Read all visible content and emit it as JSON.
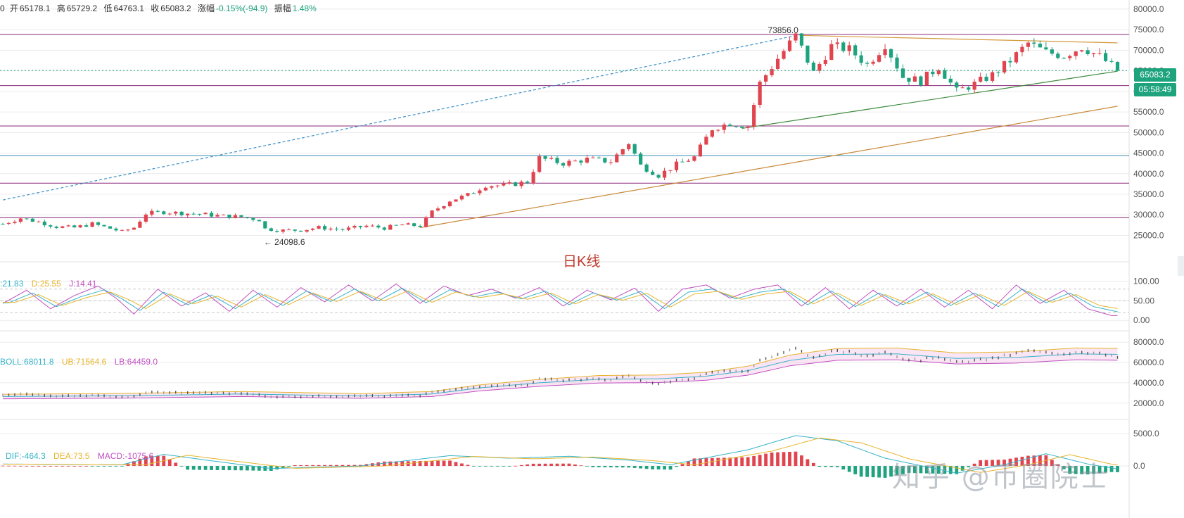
{
  "header": {
    "ohlc": [
      {
        "k": "开",
        "v": "65178.1"
      },
      {
        "k": "高",
        "v": "65729.2"
      },
      {
        "k": "低",
        "v": "64763.1"
      },
      {
        "k": "收",
        "v": "65083.2"
      },
      {
        "k": "涨幅",
        "v": "-0.15%(-94.9)"
      },
      {
        "k": "振幅",
        "v": "1.48%"
      }
    ],
    "lead": "0"
  },
  "colors": {
    "up": "#e0454f",
    "down": "#1da37e",
    "grid": "#ececec",
    "kdj_k": "#36b3c8",
    "kdj_d": "#e7b42c",
    "kdj_j": "#c050c0",
    "boll_mid": "#36b3c8",
    "boll_up": "#e7b42c",
    "boll_lo": "#c050c0",
    "dif": "#36b3c8",
    "dea": "#e7b42c"
  },
  "price": {
    "last": "65083.2",
    "countdown": "05:58:49",
    "high_label": "73856.0",
    "low_label": "24098.6",
    "chart_label": "日K线"
  },
  "kdj": {
    "k": "21.83",
    "d": "25.55",
    "j": "14.41"
  },
  "boll": {
    "mid": "68011.8",
    "ub": "71564.6",
    "lb": "64459.0"
  },
  "macd": {
    "dif": "-464.3",
    "dea": "73.5",
    "macd": "-1075.6"
  },
  "watermark": "知乎 @币圈院士",
  "chart_data": {
    "type": "line",
    "price_axis": {
      "ticks": [
        "80000.0",
        "75000.0",
        "70000.0",
        "65000.0",
        "60000.0",
        "55000.0",
        "50000.0",
        "45000.0",
        "40000.0",
        "35000.0",
        "30000.0",
        "25000.0"
      ],
      "min": 22000,
      "max": 80500
    },
    "kdj_axis": {
      "ticks": [
        "100.00",
        "50.00",
        "0.00"
      ],
      "min": -5,
      "max": 110
    },
    "boll_axis": {
      "ticks": [
        "80000.0",
        "60000.0",
        "40000.0",
        "20000.0"
      ],
      "min": 15000,
      "max": 85000
    },
    "macd_axis": {
      "ticks": [
        "5000.0",
        "0.0"
      ],
      "min": -2500,
      "max": 6000
    },
    "horizontal_levels": [
      73856,
      61400,
      51600,
      44400,
      37700,
      29300
    ],
    "close_series": [
      [
        0,
        27800
      ],
      [
        3,
        29200
      ],
      [
        6,
        28300
      ],
      [
        9,
        27100
      ],
      [
        12,
        26900
      ],
      [
        15,
        27800
      ],
      [
        18,
        26700
      ],
      [
        20,
        25900
      ],
      [
        22,
        26900
      ],
      [
        24,
        30300
      ],
      [
        27,
        30700
      ],
      [
        30,
        30400
      ],
      [
        33,
        30200
      ],
      [
        37,
        29700
      ],
      [
        40,
        29500
      ],
      [
        43,
        28800
      ],
      [
        44,
        26600
      ],
      [
        47,
        26200
      ],
      [
        50,
        26300
      ],
      [
        53,
        26900
      ],
      [
        57,
        26400
      ],
      [
        61,
        27300
      ],
      [
        64,
        26800
      ],
      [
        67,
        27600
      ],
      [
        70,
        27300
      ],
      [
        72,
        30700
      ],
      [
        75,
        33500
      ],
      [
        78,
        34800
      ],
      [
        81,
        37200
      ],
      [
        84,
        37100
      ],
      [
        88,
        38000
      ],
      [
        90,
        43800
      ],
      [
        94,
        42500
      ],
      [
        98,
        43500
      ],
      [
        102,
        43000
      ],
      [
        105,
        47500
      ],
      [
        107,
        42000
      ],
      [
        110,
        39600
      ],
      [
        113,
        42200
      ],
      [
        116,
        44000
      ],
      [
        119,
        51000
      ],
      [
        122,
        52300
      ],
      [
        125,
        51600
      ],
      [
        127,
        62000
      ],
      [
        130,
        68000
      ],
      [
        133,
        73500
      ],
      [
        136,
        64500
      ],
      [
        139,
        71000
      ],
      [
        142,
        70200
      ],
      [
        145,
        66500
      ],
      [
        148,
        71500
      ],
      [
        151,
        63500
      ],
      [
        154,
        62500
      ],
      [
        157,
        66000
      ],
      [
        160,
        60000
      ],
      [
        163,
        61800
      ],
      [
        166,
        64000
      ],
      [
        169,
        67500
      ],
      [
        172,
        71700
      ],
      [
        175,
        69500
      ],
      [
        178,
        68700
      ],
      [
        181,
        70800
      ],
      [
        184,
        68500
      ],
      [
        187,
        65083
      ]
    ],
    "kdj_k_series": [
      [
        0,
        45
      ],
      [
        4,
        70
      ],
      [
        8,
        35
      ],
      [
        12,
        60
      ],
      [
        16,
        78
      ],
      [
        19,
        55
      ],
      [
        22,
        25
      ],
      [
        26,
        72
      ],
      [
        30,
        40
      ],
      [
        34,
        65
      ],
      [
        38,
        30
      ],
      [
        42,
        70
      ],
      [
        46,
        38
      ],
      [
        50,
        75
      ],
      [
        54,
        48
      ],
      [
        58,
        80
      ],
      [
        62,
        50
      ],
      [
        66,
        82
      ],
      [
        70,
        45
      ],
      [
        74,
        78
      ],
      [
        78,
        60
      ],
      [
        82,
        72
      ],
      [
        86,
        55
      ],
      [
        90,
        75
      ],
      [
        94,
        40
      ],
      [
        98,
        70
      ],
      [
        102,
        52
      ],
      [
        106,
        74
      ],
      [
        110,
        30
      ],
      [
        114,
        72
      ],
      [
        118,
        80
      ],
      [
        122,
        55
      ],
      [
        126,
        72
      ],
      [
        130,
        80
      ],
      [
        134,
        40
      ],
      [
        138,
        75
      ],
      [
        142,
        35
      ],
      [
        146,
        70
      ],
      [
        150,
        40
      ],
      [
        154,
        72
      ],
      [
        158,
        38
      ],
      [
        162,
        70
      ],
      [
        166,
        35
      ],
      [
        170,
        80
      ],
      [
        174,
        45
      ],
      [
        178,
        70
      ],
      [
        182,
        35
      ],
      [
        186,
        22
      ]
    ],
    "boll_mid_series": [
      [
        0,
        26500
      ],
      [
        20,
        27200
      ],
      [
        40,
        29000
      ],
      [
        60,
        27000
      ],
      [
        72,
        29000
      ],
      [
        80,
        35000
      ],
      [
        90,
        40000
      ],
      [
        100,
        43500
      ],
      [
        110,
        44000
      ],
      [
        118,
        46500
      ],
      [
        125,
        52000
      ],
      [
        132,
        62000
      ],
      [
        140,
        68000
      ],
      [
        150,
        68500
      ],
      [
        160,
        64000
      ],
      [
        170,
        65000
      ],
      [
        180,
        68500
      ],
      [
        187,
        68011
      ]
    ],
    "macd_dif_series": [
      [
        0,
        300
      ],
      [
        20,
        200
      ],
      [
        27,
        1800
      ],
      [
        35,
        800
      ],
      [
        45,
        -400
      ],
      [
        60,
        0
      ],
      [
        75,
        1600
      ],
      [
        85,
        1200
      ],
      [
        95,
        1500
      ],
      [
        105,
        900
      ],
      [
        112,
        200
      ],
      [
        125,
        2500
      ],
      [
        133,
        4700
      ],
      [
        140,
        3900
      ],
      [
        148,
        1200
      ],
      [
        160,
        -1100
      ],
      [
        168,
        200
      ],
      [
        175,
        1900
      ],
      [
        182,
        300
      ],
      [
        187,
        -464
      ]
    ]
  }
}
